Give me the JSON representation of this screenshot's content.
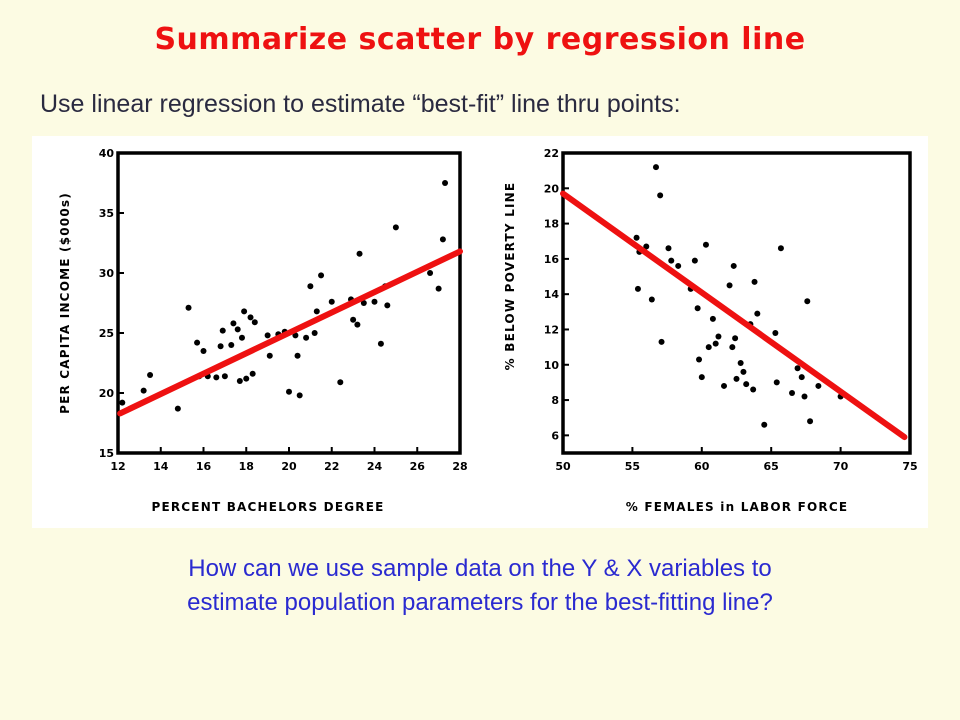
{
  "slide": {
    "title": "Summarize scatter by regression line",
    "subtitle": "Use linear regression to estimate “best-fit” line thru points:",
    "question_line1": "How can we use sample data on the Y & X variables to",
    "question_line2": "estimate population parameters for the best-fitting line?"
  },
  "colors": {
    "title": "#ee1111",
    "regression_line": "#ee1111",
    "question_text": "#2a2ad0",
    "background": "#fcfbe3"
  },
  "chart_data": [
    {
      "type": "scatter",
      "xlabel": "PERCENT BACHELORS DEGREE",
      "ylabel": "PER CAPITA INCOME ($000s)",
      "xlim": [
        12,
        28
      ],
      "ylim": [
        15,
        40
      ],
      "x_ticks": [
        12,
        14,
        16,
        18,
        20,
        22,
        24,
        26,
        28
      ],
      "y_ticks": [
        15,
        20,
        25,
        30,
        35,
        40
      ],
      "y_tick_labels": [
        "15",
        "20",
        "25",
        "30",
        "35",
        "40"
      ],
      "grid": false,
      "points": [
        [
          12.2,
          19.2
        ],
        [
          13.2,
          20.2
        ],
        [
          13.5,
          21.5
        ],
        [
          14.8,
          18.7
        ],
        [
          15.3,
          27.1
        ],
        [
          15.7,
          24.2
        ],
        [
          15.8,
          21.4
        ],
        [
          16.0,
          23.5
        ],
        [
          16.2,
          21.4
        ],
        [
          16.6,
          21.3
        ],
        [
          16.8,
          23.9
        ],
        [
          16.9,
          25.2
        ],
        [
          17.0,
          21.4
        ],
        [
          17.3,
          24.0
        ],
        [
          17.4,
          25.8
        ],
        [
          17.6,
          25.3
        ],
        [
          17.7,
          21.0
        ],
        [
          17.8,
          24.6
        ],
        [
          17.9,
          26.8
        ],
        [
          18.0,
          21.2
        ],
        [
          18.2,
          26.3
        ],
        [
          18.3,
          21.6
        ],
        [
          18.4,
          25.9
        ],
        [
          19.0,
          24.8
        ],
        [
          19.1,
          23.1
        ],
        [
          19.5,
          24.9
        ],
        [
          19.8,
          25.1
        ],
        [
          20.0,
          20.1
        ],
        [
          20.3,
          24.8
        ],
        [
          20.4,
          23.1
        ],
        [
          20.5,
          19.8
        ],
        [
          20.8,
          24.6
        ],
        [
          21.0,
          28.9
        ],
        [
          21.2,
          25.0
        ],
        [
          21.3,
          26.8
        ],
        [
          21.5,
          29.8
        ],
        [
          22.0,
          27.6
        ],
        [
          22.4,
          20.9
        ],
        [
          22.9,
          27.8
        ],
        [
          23.0,
          26.1
        ],
        [
          23.2,
          25.7
        ],
        [
          23.3,
          31.6
        ],
        [
          23.5,
          27.5
        ],
        [
          24.0,
          27.6
        ],
        [
          24.3,
          24.1
        ],
        [
          24.5,
          28.9
        ],
        [
          24.6,
          27.3
        ],
        [
          25.0,
          33.8
        ],
        [
          26.6,
          30.0
        ],
        [
          27.0,
          28.7
        ],
        [
          27.2,
          32.8
        ],
        [
          27.3,
          37.5
        ]
      ],
      "regression_line": [
        [
          12.1,
          18.3
        ],
        [
          28.0,
          31.8
        ]
      ]
    },
    {
      "type": "scatter",
      "xlabel": "% FEMALES in LABOR FORCE",
      "ylabel": "% BELOW POVERTY LINE",
      "xlim": [
        50,
        75
      ],
      "ylim": [
        5,
        22
      ],
      "x_ticks": [
        50,
        55,
        60,
        65,
        70,
        75
      ],
      "y_ticks": [
        6,
        8,
        10,
        12,
        14,
        16,
        18,
        20,
        22
      ],
      "y_tick_labels": [
        "6",
        "8",
        "10",
        "12",
        "14",
        "16",
        "18",
        "20",
        "22"
      ],
      "grid": false,
      "points": [
        [
          55.3,
          17.2
        ],
        [
          55.4,
          14.3
        ],
        [
          55.5,
          16.4
        ],
        [
          56.0,
          16.7
        ],
        [
          56.4,
          13.7
        ],
        [
          56.7,
          21.2
        ],
        [
          57.0,
          19.6
        ],
        [
          57.1,
          11.3
        ],
        [
          57.6,
          16.6
        ],
        [
          57.8,
          15.9
        ],
        [
          58.3,
          15.6
        ],
        [
          59.2,
          14.3
        ],
        [
          59.5,
          15.9
        ],
        [
          59.7,
          13.2
        ],
        [
          59.8,
          10.3
        ],
        [
          60.0,
          9.3
        ],
        [
          60.3,
          16.8
        ],
        [
          60.5,
          11.0
        ],
        [
          60.8,
          12.6
        ],
        [
          61.0,
          11.2
        ],
        [
          61.2,
          11.6
        ],
        [
          61.6,
          8.8
        ],
        [
          62.0,
          14.5
        ],
        [
          62.2,
          11.0
        ],
        [
          62.3,
          15.6
        ],
        [
          62.4,
          11.5
        ],
        [
          62.5,
          9.2
        ],
        [
          62.8,
          10.1
        ],
        [
          63.0,
          9.6
        ],
        [
          63.2,
          8.9
        ],
        [
          63.5,
          12.3
        ],
        [
          63.7,
          8.6
        ],
        [
          63.8,
          14.7
        ],
        [
          64.0,
          12.9
        ],
        [
          64.5,
          6.6
        ],
        [
          65.3,
          11.8
        ],
        [
          65.4,
          9.0
        ],
        [
          65.7,
          16.6
        ],
        [
          66.5,
          8.4
        ],
        [
          66.9,
          9.8
        ],
        [
          67.2,
          9.3
        ],
        [
          67.4,
          8.2
        ],
        [
          67.6,
          13.6
        ],
        [
          67.8,
          6.8
        ],
        [
          68.4,
          8.8
        ],
        [
          70.0,
          8.2
        ]
      ],
      "regression_line": [
        [
          50.0,
          19.7
        ],
        [
          74.6,
          5.9
        ]
      ]
    }
  ]
}
